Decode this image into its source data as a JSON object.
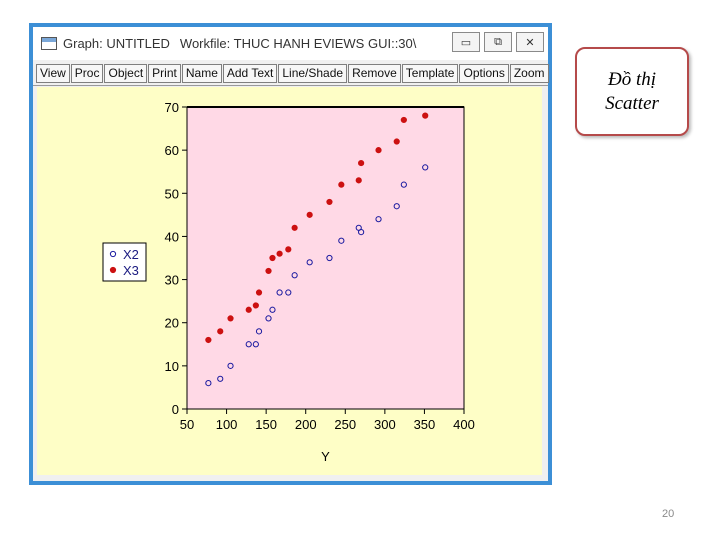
{
  "window": {
    "title_graph": "Graph: UNTITLED",
    "title_workfile": "Workfile: THUC HANH EVIEWS GUI::30\\",
    "btn_minimize": "▭",
    "btn_restore": "⧉",
    "btn_close": "✕"
  },
  "toolbar": {
    "view": "View",
    "proc": "Proc",
    "object": "Object",
    "print": "Print",
    "name": "Name",
    "addtext": "Add Text",
    "lineshade": "Line/Shade",
    "remove": "Remove",
    "template": "Template",
    "options": "Options",
    "zoom": "Zoom"
  },
  "callout": {
    "line1": "Đồ thị",
    "line2": "Scatter"
  },
  "page_number": "20",
  "chart_data": {
    "type": "scatter",
    "xlabel": "Y",
    "ylabel": "",
    "xlim": [
      50,
      400
    ],
    "ylim": [
      0,
      70
    ],
    "x_ticks": [
      50,
      100,
      150,
      200,
      250,
      300,
      350,
      400
    ],
    "y_ticks": [
      0,
      10,
      20,
      30,
      40,
      50,
      60,
      70
    ],
    "grid": false,
    "legend_position": "left",
    "series": [
      {
        "name": "X2",
        "marker": "open-circle",
        "color": "#1a1aa0",
        "points": [
          [
            77,
            6
          ],
          [
            92,
            7
          ],
          [
            105,
            10
          ],
          [
            128,
            15
          ],
          [
            137,
            15
          ],
          [
            141,
            18
          ],
          [
            153,
            21
          ],
          [
            158,
            23
          ],
          [
            167,
            27
          ],
          [
            178,
            27
          ],
          [
            186,
            31
          ],
          [
            205,
            34
          ],
          [
            230,
            35
          ],
          [
            245,
            39
          ],
          [
            267,
            42
          ],
          [
            270,
            41
          ],
          [
            292,
            44
          ],
          [
            315,
            47
          ],
          [
            324,
            52
          ],
          [
            351,
            56
          ]
        ]
      },
      {
        "name": "X3",
        "marker": "filled-circle",
        "color": "#cc1111",
        "points": [
          [
            77,
            16
          ],
          [
            92,
            18
          ],
          [
            105,
            21
          ],
          [
            128,
            23
          ],
          [
            137,
            24
          ],
          [
            141,
            27
          ],
          [
            153,
            32
          ],
          [
            158,
            35
          ],
          [
            167,
            36
          ],
          [
            178,
            37
          ],
          [
            186,
            42
          ],
          [
            205,
            45
          ],
          [
            230,
            48
          ],
          [
            245,
            52
          ],
          [
            267,
            53
          ],
          [
            270,
            57
          ],
          [
            292,
            60
          ],
          [
            315,
            62
          ],
          [
            324,
            67
          ],
          [
            351,
            68
          ]
        ]
      }
    ]
  }
}
